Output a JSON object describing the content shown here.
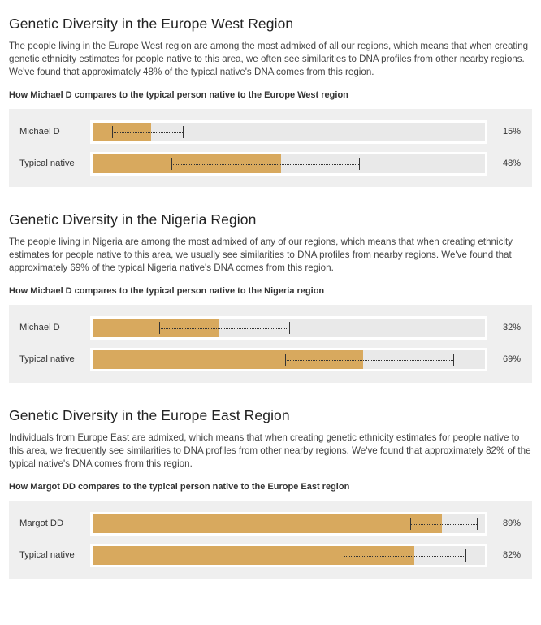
{
  "sections": [
    {
      "title": "Genetic Diversity in the Europe West Region",
      "description": "The people living in the Europe West region are among the most admixed of all our regions, which means that when creating genetic ethnicity estimates for people native to this area, we often see similarities to DNA profiles from other nearby regions. We've found that approximately 48% of the typical native's DNA comes from this region.",
      "comparison_title": "How Michael D compares to the typical person native to the Europe West region",
      "rows": [
        {
          "label": "Michael D",
          "percent_text": "15%",
          "value": 15,
          "range": [
            5,
            23
          ]
        },
        {
          "label": "Typical native",
          "percent_text": "48%",
          "value": 48,
          "range": [
            20,
            68
          ]
        }
      ]
    },
    {
      "title": "Genetic Diversity in the Nigeria Region",
      "description": "The people living in Nigeria are among the most admixed of any of our regions, which means that when creating ethnicity estimates for people native to this area, we usually see similarities to DNA profiles from nearby regions. We've found that approximately 69% of the typical Nigeria native's DNA comes from this region.",
      "comparison_title": "How Michael D compares to the typical person native to the Nigeria region",
      "rows": [
        {
          "label": "Michael D",
          "percent_text": "32%",
          "value": 32,
          "range": [
            17,
            50
          ]
        },
        {
          "label": "Typical native",
          "percent_text": "69%",
          "value": 69,
          "range": [
            49,
            92
          ]
        }
      ]
    },
    {
      "title": "Genetic Diversity in the Europe East Region",
      "description": "Individuals from Europe East are admixed, which means that when creating genetic ethnicity estimates for people native to this area, we frequently see similarities to DNA profiles from other nearby regions. We've found that approximately 82% of the typical native's DNA comes from this region.",
      "comparison_title": "How Margot DD compares to the typical person native to the Europe East region",
      "rows": [
        {
          "label": "Margot DD",
          "percent_text": "89%",
          "value": 89,
          "range": [
            81,
            98
          ]
        },
        {
          "label": "Typical native",
          "percent_text": "82%",
          "value": 82,
          "range": [
            64,
            95
          ]
        }
      ]
    }
  ],
  "colors": {
    "fill": "#d8a95e",
    "track": "#e9e9e9",
    "panel": "#efefef"
  }
}
